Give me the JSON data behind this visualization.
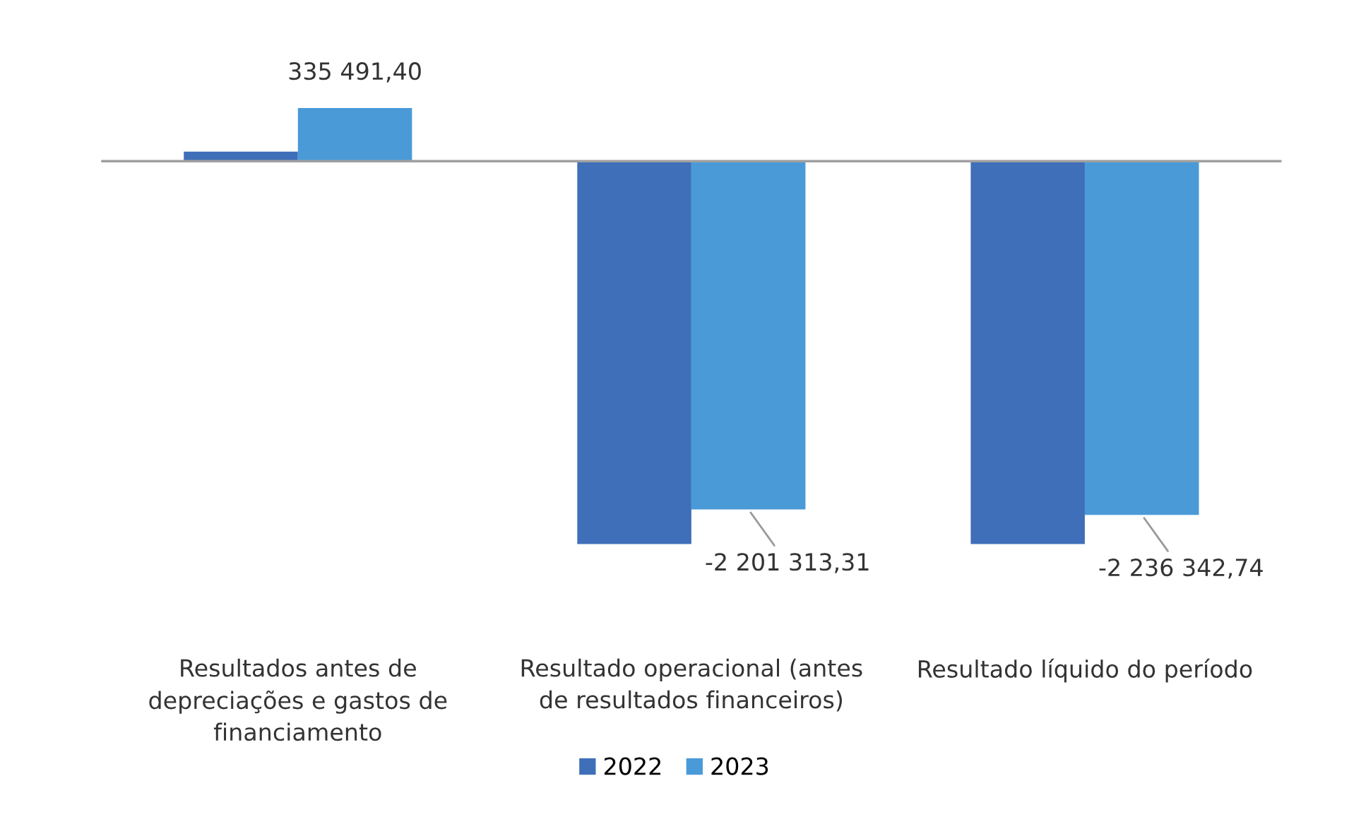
{
  "chart_data": {
    "type": "bar",
    "categories": [
      "Resultados antes de\ndepreciações e gastos de\nfinanciamento",
      "Resultado operacional (antes\nde resultados financeiros)",
      "Resultado líquido do período"
    ],
    "series": [
      {
        "name": "2022",
        "color": "#3f6fb8",
        "values": [
          60000,
          -2420000,
          -2420000
        ]
      },
      {
        "name": "2023",
        "color": "#4a9ad8",
        "values": [
          335491.4,
          -2201313.31,
          -2236342.74
        ],
        "value_labels": [
          "335 491,40",
          "-2 201 313,31",
          "-2 236 342,74"
        ]
      }
    ],
    "legend": "bottom"
  }
}
